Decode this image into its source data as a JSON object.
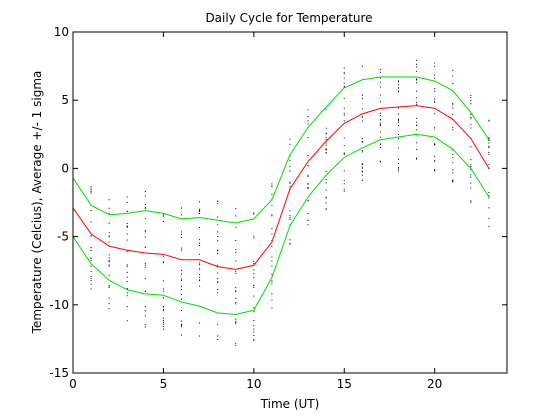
{
  "chart_data": {
    "type": "line",
    "title": "Daily Cycle for Temperature",
    "xlabel": "Time (UT)",
    "ylabel": "Temperature (Celcius), Average +/- 1 sigma",
    "xlim": [
      0,
      24
    ],
    "ylim": [
      -15,
      10
    ],
    "xticks": [
      0,
      5,
      10,
      15,
      20
    ],
    "yticks": [
      -15,
      -10,
      -5,
      0,
      5,
      10
    ],
    "grid": false,
    "x": [
      0,
      1,
      2,
      3,
      4,
      5,
      6,
      7,
      8,
      9,
      10,
      11,
      12,
      13,
      14,
      15,
      16,
      17,
      18,
      19,
      20,
      21,
      22,
      23
    ],
    "series": [
      {
        "color": "#00dd00",
        "values": [
          -0.7,
          -2.7,
          -3.4,
          -3.3,
          -3.1,
          -3.3,
          -3.7,
          -3.6,
          -3.8,
          -4.0,
          -3.7,
          -2.3,
          1.0,
          3.0,
          4.5,
          5.9,
          6.5,
          6.7,
          6.7,
          6.7,
          6.4,
          5.7,
          4.1,
          2.1
        ]
      },
      {
        "color": "#ff0000",
        "values": [
          -2.9,
          -4.8,
          -5.7,
          -6.0,
          -6.2,
          -6.3,
          -6.7,
          -6.7,
          -7.2,
          -7.4,
          -7.1,
          -5.4,
          -1.5,
          0.5,
          2.0,
          3.3,
          4.0,
          4.4,
          4.5,
          4.6,
          4.4,
          3.6,
          2.2,
          0.0
        ]
      },
      {
        "color": "#00dd00",
        "values": [
          -5.0,
          -7.0,
          -8.2,
          -8.9,
          -9.2,
          -9.3,
          -9.8,
          -10.1,
          -10.6,
          -10.7,
          -10.4,
          -8.0,
          -4.2,
          -2.1,
          -0.5,
          0.8,
          1.5,
          2.1,
          2.3,
          2.5,
          2.3,
          1.4,
          0.0,
          -2.1
        ]
      }
    ],
    "scatter_color": "#000000"
  }
}
